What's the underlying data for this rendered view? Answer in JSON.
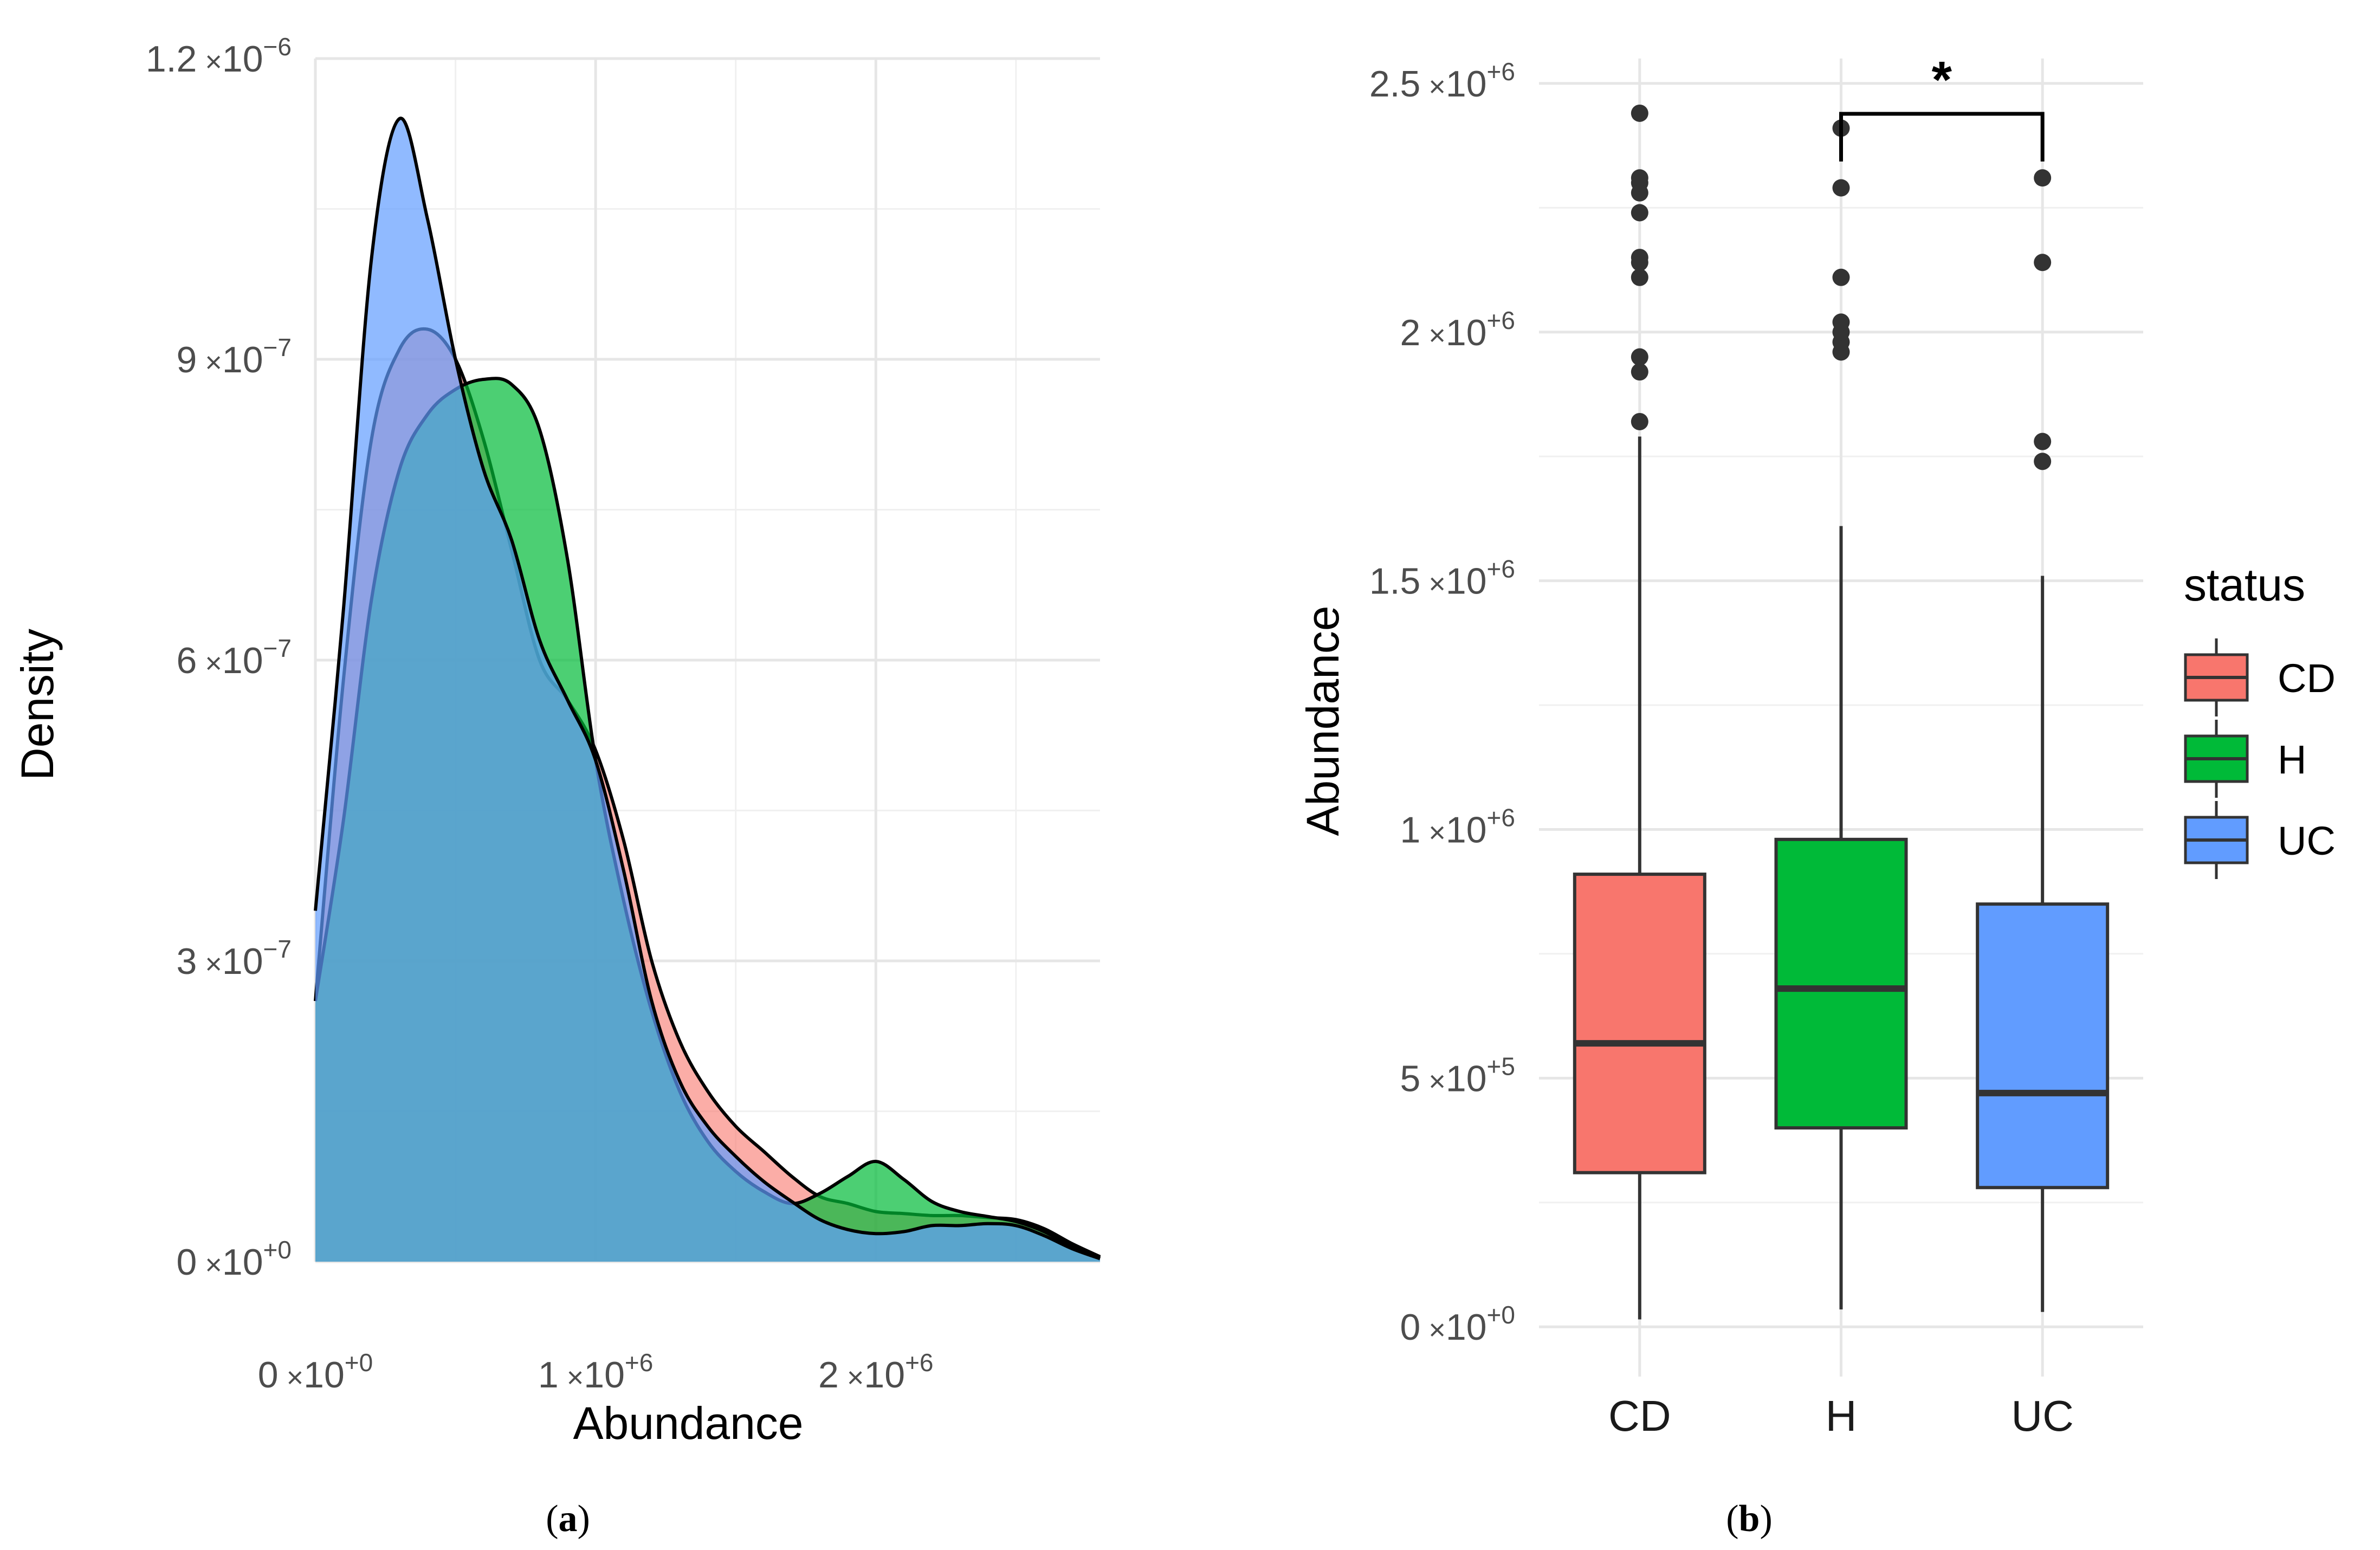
{
  "chart_data": [
    {
      "panel": "(a)",
      "type": "area",
      "subtype": "density",
      "xlabel": "Abundance",
      "ylabel": "Density",
      "xlim": [
        0,
        2800000
      ],
      "ylim": [
        0,
        1.2e-06
      ],
      "x_ticks": [
        {
          "value": 0,
          "mant": "0",
          "op": "×",
          "base": "10",
          "exp": "+0"
        },
        {
          "value": 1000000,
          "mant": "1",
          "op": "×",
          "base": "10",
          "exp": "+6"
        },
        {
          "value": 2000000,
          "mant": "2",
          "op": "×",
          "base": "10",
          "exp": "+6"
        }
      ],
      "y_ticks": [
        {
          "value": 0,
          "mant": "0",
          "op": "×",
          "base": "10",
          "exp": "+0"
        },
        {
          "value": 3e-07,
          "mant": "3",
          "op": "×",
          "base": "10",
          "exp": "−7"
        },
        {
          "value": 6e-07,
          "mant": "6",
          "op": "×",
          "base": "10",
          "exp": "−7"
        },
        {
          "value": 9e-07,
          "mant": "9",
          "op": "×",
          "base": "10",
          "exp": "−7"
        },
        {
          "value": 1.2e-06,
          "mant": "1.2",
          "op": "×",
          "base": "10",
          "exp": "−6"
        }
      ],
      "series": [
        {
          "name": "CD",
          "color": "#F8766D",
          "opacity": 0.6,
          "x": [
            0,
            100000,
            200000,
            300000,
            400000,
            500000,
            600000,
            700000,
            800000,
            900000,
            1000000,
            1100000,
            1200000,
            1300000,
            1400000,
            1500000,
            1600000,
            1700000,
            1800000,
            1900000,
            2000000,
            2100000,
            2200000,
            2300000,
            2400000,
            2500000,
            2600000,
            2700000,
            2800000
          ],
          "y": [
            2.6e-07,
            5.8e-07,
            8.2e-07,
            9.1e-07,
            9.3e-07,
            9e-07,
            8.2e-07,
            7.1e-07,
            6e-07,
            5.6e-07,
            5.1e-07,
            4.2e-07,
            3e-07,
            2.2e-07,
            1.7e-07,
            1.35e-07,
            1.1e-07,
            8.5e-08,
            6.5e-08,
            5.8e-08,
            5e-08,
            4.8e-08,
            4.6e-08,
            4.6e-08,
            4.4e-08,
            4.2e-08,
            3.3e-08,
            1.8e-08,
            5e-09
          ]
        },
        {
          "name": "H",
          "color": "#00BA38",
          "opacity": 0.7,
          "x": [
            0,
            100000,
            200000,
            300000,
            400000,
            500000,
            600000,
            700000,
            800000,
            900000,
            1000000,
            1100000,
            1200000,
            1300000,
            1400000,
            1500000,
            1600000,
            1700000,
            1800000,
            1900000,
            2000000,
            2100000,
            2200000,
            2300000,
            2400000,
            2500000,
            2600000,
            2700000,
            2800000
          ],
          "y": [
            2.6e-07,
            4.4e-07,
            6.6e-07,
            7.9e-07,
            8.45e-07,
            8.7e-07,
            8.8e-07,
            8.75e-07,
            8.3e-07,
            7e-07,
            5e-07,
            3.6e-07,
            2.5e-07,
            1.7e-07,
            1.2e-07,
            9e-08,
            7e-08,
            5.8e-08,
            6.8e-08,
            8.5e-08,
            1e-07,
            8.2e-08,
            6e-08,
            5e-08,
            4.5e-08,
            4e-08,
            3e-08,
            1.5e-08,
            4e-09
          ]
        },
        {
          "name": "UC",
          "color": "#619CFF",
          "opacity": 0.7,
          "x": [
            0,
            100000,
            200000,
            300000,
            400000,
            500000,
            600000,
            700000,
            800000,
            900000,
            1000000,
            1100000,
            1200000,
            1300000,
            1400000,
            1500000,
            1600000,
            1700000,
            1800000,
            1900000,
            2000000,
            2100000,
            2200000,
            2300000,
            2400000,
            2500000,
            2600000,
            2700000,
            2800000
          ],
          "y": [
            3.5e-07,
            6.5e-07,
            1e-06,
            1.14e-06,
            1.04e-06,
            9e-07,
            7.9e-07,
            7.2e-07,
            6.2e-07,
            5.6e-07,
            5e-07,
            3.9e-07,
            2.6e-07,
            1.8e-07,
            1.35e-07,
            1.05e-07,
            8e-08,
            6e-08,
            4.2e-08,
            3.2e-08,
            2.8e-08,
            3e-08,
            3.6e-08,
            3.6e-08,
            3.8e-08,
            3.6e-08,
            2.6e-08,
            1.3e-08,
            3e-09
          ]
        }
      ]
    },
    {
      "panel": "(b)",
      "type": "box",
      "xlabel": "",
      "ylabel": "Abundance",
      "ylim": [
        -100000,
        2550000
      ],
      "categories": [
        "CD",
        "H",
        "UC"
      ],
      "y_ticks": [
        {
          "value": 0,
          "mant": "0",
          "op": "×",
          "base": "10",
          "exp": "+0"
        },
        {
          "value": 500000,
          "mant": "5",
          "op": "×",
          "base": "10",
          "exp": "+5"
        },
        {
          "value": 1000000,
          "mant": "1",
          "op": "×",
          "base": "10",
          "exp": "+6"
        },
        {
          "value": 1500000,
          "mant": "1.5",
          "op": "×",
          "base": "10",
          "exp": "+6"
        },
        {
          "value": 2000000,
          "mant": "2",
          "op": "×",
          "base": "10",
          "exp": "+6"
        },
        {
          "value": 2500000,
          "mant": "2.5",
          "op": "×",
          "base": "10",
          "exp": "+6"
        }
      ],
      "boxes": [
        {
          "name": "CD",
          "color": "#F8766D",
          "whisker_low": 15000,
          "q1": 310000,
          "median": 570000,
          "q3": 910000,
          "whisker_high": 1790000,
          "outliers": [
            1820000,
            1920000,
            1950000,
            2110000,
            2140000,
            2150000,
            2240000,
            2280000,
            2300000,
            2310000,
            2440000
          ]
        },
        {
          "name": "H",
          "color": "#00BA38",
          "whisker_low": 35000,
          "q1": 400000,
          "median": 680000,
          "q3": 980000,
          "whisker_high": 1610000,
          "outliers": [
            1960000,
            1980000,
            2000000,
            2020000,
            2110000,
            2290000,
            2410000
          ]
        },
        {
          "name": "UC",
          "color": "#619CFF",
          "whisker_low": 30000,
          "q1": 280000,
          "median": 470000,
          "q3": 850000,
          "whisker_high": 1510000,
          "outliers": [
            1740000,
            1780000,
            2140000,
            2310000
          ]
        }
      ],
      "significance": {
        "from": "H",
        "to": "UC",
        "label": "*"
      },
      "legend": {
        "title": "status",
        "placement": "right",
        "entries": [
          {
            "label": "CD",
            "color": "#F8766D"
          },
          {
            "label": "H",
            "color": "#00BA38"
          },
          {
            "label": "UC",
            "color": "#619CFF"
          }
        ]
      }
    }
  ],
  "captions": {
    "a": "a",
    "b": "b"
  }
}
